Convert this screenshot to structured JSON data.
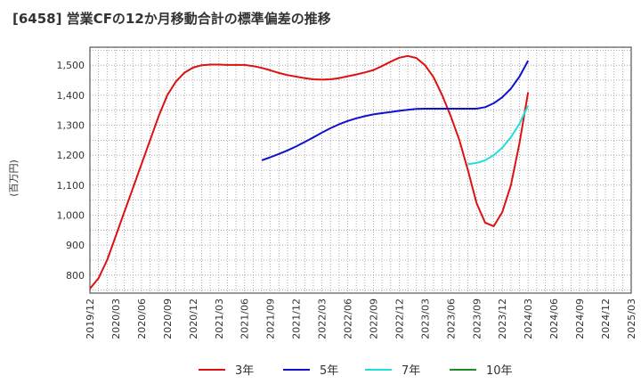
{
  "chart_data": {
    "type": "line",
    "title": "[6458]  営業CFの12か月移動合計の標準偏差の推移",
    "ylabel": "(百万円)",
    "xlabel": "",
    "ylim": [
      740,
      1560
    ],
    "yticks": [
      800,
      900,
      1000,
      1100,
      1200,
      1300,
      1400,
      1500
    ],
    "ytick_labels": [
      "800",
      "900",
      "1,000",
      "1,100",
      "1,200",
      "1,300",
      "1,400",
      "1,500"
    ],
    "xticks": [
      "2019/12",
      "2020/03",
      "2020/06",
      "2020/09",
      "2020/12",
      "2021/03",
      "2021/06",
      "2021/09",
      "2021/12",
      "2022/03",
      "2022/06",
      "2022/09",
      "2022/12",
      "2023/03",
      "2023/06",
      "2023/09",
      "2023/12",
      "2024/03",
      "2024/06",
      "2024/09",
      "2024/12",
      "2025/03"
    ],
    "grid": true,
    "legend_position": "bottom",
    "series": [
      {
        "name": "3年",
        "color": "#dd1111",
        "points": [
          [
            "2019/12",
            755
          ],
          [
            "2020/01",
            790
          ],
          [
            "2020/02",
            850
          ],
          [
            "2020/03",
            930
          ],
          [
            "2020/04",
            1010
          ],
          [
            "2020/05",
            1090
          ],
          [
            "2020/06",
            1170
          ],
          [
            "2020/07",
            1250
          ],
          [
            "2020/08",
            1330
          ],
          [
            "2020/09",
            1400
          ],
          [
            "2020/10",
            1445
          ],
          [
            "2020/11",
            1475
          ],
          [
            "2020/12",
            1492
          ],
          [
            "2021/01",
            1500
          ],
          [
            "2021/02",
            1502
          ],
          [
            "2021/03",
            1502
          ],
          [
            "2021/04",
            1501
          ],
          [
            "2021/05",
            1501
          ],
          [
            "2021/06",
            1501
          ],
          [
            "2021/07",
            1497
          ],
          [
            "2021/08",
            1491
          ],
          [
            "2021/09",
            1483
          ],
          [
            "2021/10",
            1474
          ],
          [
            "2021/11",
            1467
          ],
          [
            "2021/12",
            1462
          ],
          [
            "2022/01",
            1457
          ],
          [
            "2022/02",
            1453
          ],
          [
            "2022/03",
            1452
          ],
          [
            "2022/04",
            1453
          ],
          [
            "2022/05",
            1457
          ],
          [
            "2022/06",
            1463
          ],
          [
            "2022/07",
            1469
          ],
          [
            "2022/08",
            1476
          ],
          [
            "2022/09",
            1484
          ],
          [
            "2022/10",
            1497
          ],
          [
            "2022/11",
            1512
          ],
          [
            "2022/12",
            1525
          ],
          [
            "2023/01",
            1531
          ],
          [
            "2023/02",
            1524
          ],
          [
            "2023/03",
            1500
          ],
          [
            "2023/04",
            1460
          ],
          [
            "2023/05",
            1400
          ],
          [
            "2023/06",
            1330
          ],
          [
            "2023/07",
            1250
          ],
          [
            "2023/08",
            1150
          ],
          [
            "2023/09",
            1040
          ],
          [
            "2023/10",
            975
          ],
          [
            "2023/11",
            963
          ],
          [
            "2023/12",
            1010
          ],
          [
            "2024/01",
            1100
          ],
          [
            "2024/02",
            1240
          ],
          [
            "2024/03",
            1410
          ]
        ]
      },
      {
        "name": "5年",
        "color": "#1111cc",
        "points": [
          [
            "2021/08",
            1183
          ],
          [
            "2021/09",
            1193
          ],
          [
            "2021/10",
            1204
          ],
          [
            "2021/11",
            1216
          ],
          [
            "2021/12",
            1229
          ],
          [
            "2022/01",
            1244
          ],
          [
            "2022/02",
            1259
          ],
          [
            "2022/03",
            1275
          ],
          [
            "2022/04",
            1290
          ],
          [
            "2022/05",
            1303
          ],
          [
            "2022/06",
            1314
          ],
          [
            "2022/07",
            1323
          ],
          [
            "2022/08",
            1330
          ],
          [
            "2022/09",
            1336
          ],
          [
            "2022/10",
            1340
          ],
          [
            "2022/11",
            1344
          ],
          [
            "2022/12",
            1348
          ],
          [
            "2023/01",
            1351
          ],
          [
            "2023/02",
            1354
          ],
          [
            "2023/03",
            1355
          ],
          [
            "2023/04",
            1355
          ],
          [
            "2023/05",
            1355
          ],
          [
            "2023/06",
            1355
          ],
          [
            "2023/07",
            1355
          ],
          [
            "2023/08",
            1355
          ],
          [
            "2023/09",
            1355
          ],
          [
            "2023/10",
            1360
          ],
          [
            "2023/11",
            1373
          ],
          [
            "2023/12",
            1393
          ],
          [
            "2024/01",
            1422
          ],
          [
            "2024/02",
            1462
          ],
          [
            "2024/03",
            1515
          ]
        ]
      },
      {
        "name": "7年",
        "color": "#22dddd",
        "points": [
          [
            "2023/08",
            1170
          ],
          [
            "2023/09",
            1174
          ],
          [
            "2023/10",
            1183
          ],
          [
            "2023/11",
            1200
          ],
          [
            "2023/12",
            1225
          ],
          [
            "2024/01",
            1260
          ],
          [
            "2024/02",
            1305
          ],
          [
            "2024/03",
            1365
          ]
        ]
      },
      {
        "name": "10年",
        "color": "#228822",
        "points": []
      }
    ]
  }
}
